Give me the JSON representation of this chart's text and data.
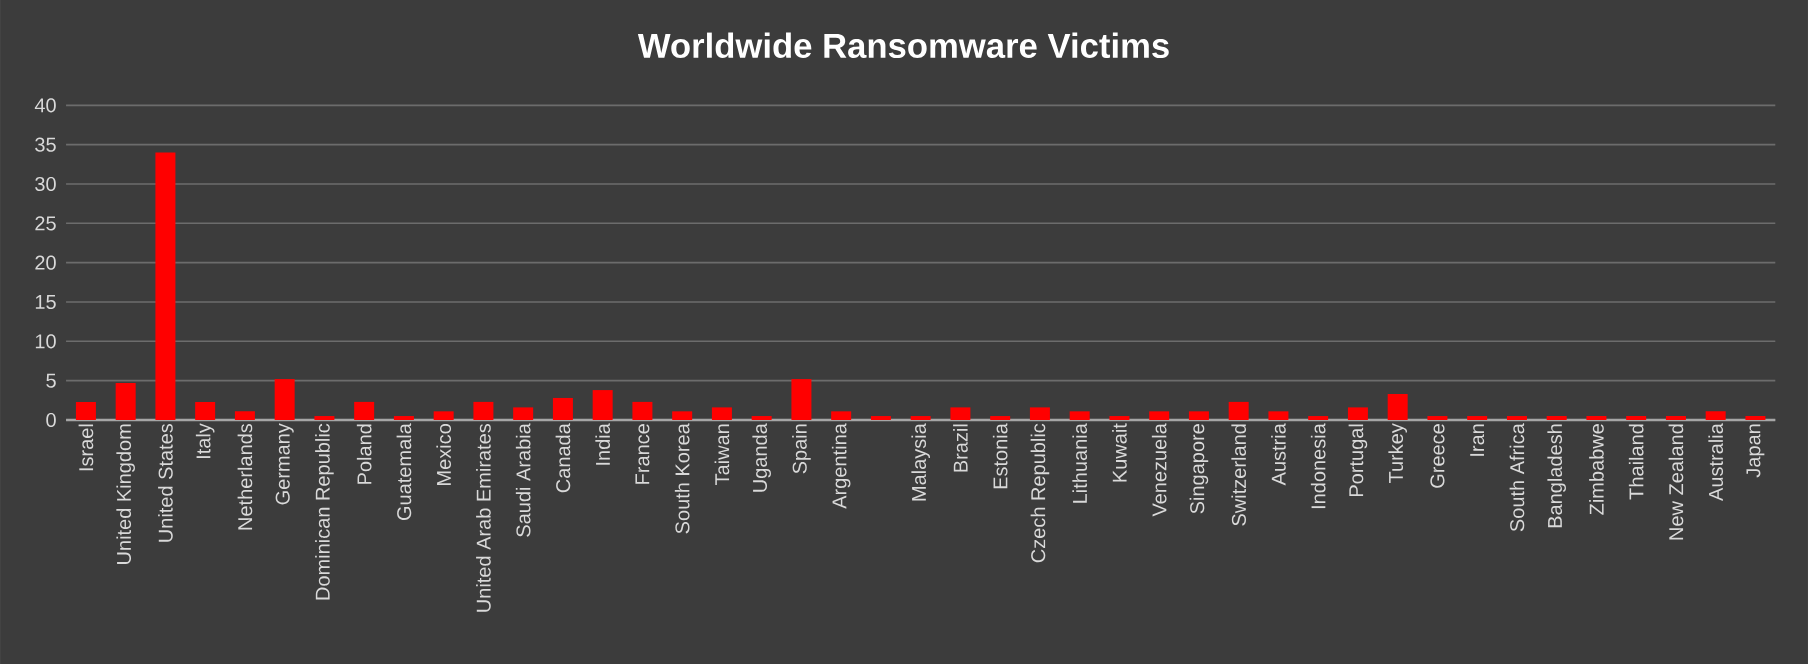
{
  "chart_data": {
    "type": "bar",
    "title": "Worldwide Ransomware Victims",
    "categories": [
      "Israel",
      "United Kingdom",
      "United States",
      "Italy",
      "Netherlands",
      "Germany",
      "Dominican Republic",
      "Poland",
      "Guatemala",
      "Mexico",
      "United Arab Emirates",
      "Saudi Arabia",
      "Canada",
      "India",
      "France",
      "South Korea",
      "Taiwan",
      "Uganda",
      "Spain",
      "Argentina",
      null,
      "Malaysia",
      "Brazil",
      "Estonia",
      "Czech Republic",
      "Lithuania",
      "Kuwait",
      "Venezuela",
      "Singapore",
      "Switzerland",
      "Austria",
      "Indonesia",
      "Portugal",
      "Turkey",
      "Greece",
      "Iran",
      "South Africa",
      "Bangladesh",
      "Zimbabwe",
      "Thailand",
      "New Zealand",
      "Australia",
      "Japan"
    ],
    "values": [
      2.3,
      4.7,
      34,
      2.3,
      1.1,
      5.2,
      0.5,
      2.3,
      0.5,
      1.1,
      2.3,
      1.6,
      2.8,
      3.8,
      2.3,
      1.1,
      1.6,
      0.5,
      5.2,
      1.1,
      0.5,
      0.5,
      1.6,
      0.5,
      1.6,
      1.1,
      0.5,
      1.1,
      1.1,
      2.3,
      1.1,
      0.5,
      1.6,
      3.3,
      0.5,
      0.5,
      0.5,
      0.5,
      0.5,
      0.5,
      0.5,
      1.1,
      0.5
    ],
    "color": "#ff0000",
    "ylim": [
      0,
      40
    ],
    "yticks": [
      0,
      5,
      10,
      15,
      20,
      25,
      30,
      35,
      40
    ],
    "grid": "y"
  }
}
